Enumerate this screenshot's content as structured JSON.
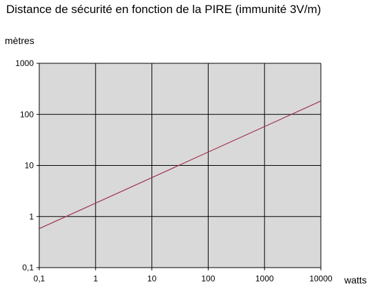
{
  "chart_data": {
    "type": "line",
    "title": "Distance de sécurité en fonction de la PIRE (immunité 3V/m)",
    "xlabel": "watts",
    "ylabel": "mètres",
    "x_scale": "log",
    "y_scale": "log",
    "xlim": [
      0.1,
      10000
    ],
    "ylim": [
      0.1,
      1000
    ],
    "x_ticks": [
      0.1,
      1,
      10,
      100,
      1000,
      10000
    ],
    "y_ticks": [
      0.1,
      1,
      10,
      100,
      1000
    ],
    "x_tick_labels": [
      "0,1",
      "1",
      "10",
      "100",
      "1000",
      "10000"
    ],
    "y_tick_labels": [
      "0,1",
      "1",
      "10",
      "100",
      "1000"
    ],
    "grid": true,
    "plot_background": "#d9d9d9",
    "series": [
      {
        "color": "#a0304c",
        "x": [
          0.1,
          1,
          10,
          100,
          1000,
          10000
        ],
        "y": [
          0.58,
          1.83,
          5.77,
          18.3,
          57.7,
          183
        ]
      }
    ]
  }
}
